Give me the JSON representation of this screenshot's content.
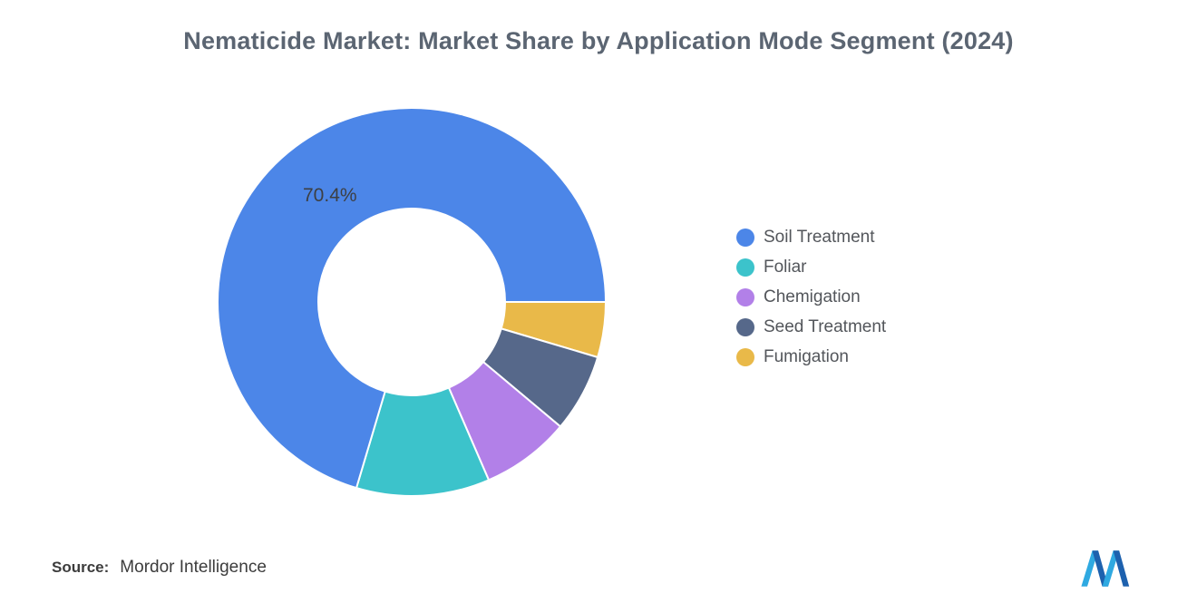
{
  "title": "Nematicide Market: Market Share by Application Mode Segment (2024)",
  "chart_data": {
    "type": "pie",
    "subtype": "donut",
    "title": "Nematicide Market: Market Share by Application Mode Segment (2024)",
    "slice_label": "70.4%",
    "legend_position": "right",
    "start_angle_deg_clockwise_from_top": 90,
    "draw_direction": "counterclockwise-from-right",
    "segments": [
      {
        "name": "Soil Treatment",
        "value": 70.4,
        "color": "#4C86E8"
      },
      {
        "name": "Foliar",
        "value": 11.1,
        "color": "#3CC3CB"
      },
      {
        "name": "Chemigation",
        "value": 7.4,
        "color": "#B280E8"
      },
      {
        "name": "Seed Treatment",
        "value": 6.5,
        "color": "#56688A"
      },
      {
        "name": "Fumigation",
        "value": 4.6,
        "color": "#E9B949"
      }
    ]
  },
  "source": {
    "label": "Source:",
    "value": "Mordor Intelligence"
  },
  "logo": {
    "name": "mordor-intelligence-logo",
    "color_light": "#2FA9E1",
    "color_dark": "#1D61AE"
  }
}
